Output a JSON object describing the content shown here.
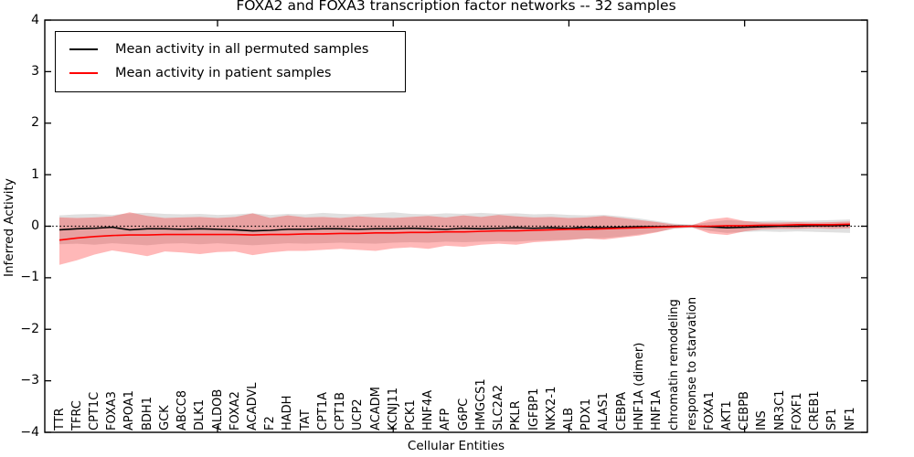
{
  "title": "FOXA2 and FOXA3 transcription factor networks -- 32 samples",
  "axes": {
    "ylabel": "Inferred Activity",
    "xlabel": "Cellular Entities",
    "y_tick_labels": [
      "4",
      "3",
      "2",
      "1",
      "0",
      "−1",
      "−2",
      "−3",
      "−4"
    ]
  },
  "legend": [
    {
      "label": "Mean activity in all permuted samples",
      "color": "#000000"
    },
    {
      "label": "Mean activity in patient samples",
      "color": "#ff0000"
    }
  ],
  "colors": {
    "permuted_line": "#000000",
    "patient_line": "#ff0000",
    "permuted_band": "rgba(0,0,0,0.12)",
    "patient_band": "rgba(255,0,0,0.28)",
    "frame": "#000000"
  },
  "chart_data": {
    "type": "line",
    "title": "FOXA2 and FOXA3 transcription factor networks -- 32 samples",
    "xlabel": "Cellular Entities",
    "ylabel": "Inferred Activity",
    "ylim": [
      -4,
      4
    ],
    "grid": false,
    "legend_position": "upper left",
    "zero_line": 0,
    "x_major_ticks": [
      10,
      20,
      30,
      40
    ],
    "categories": [
      "TTR",
      "TFRC",
      "CPT1C",
      "FOXA3",
      "APOA1",
      "BDH1",
      "GCK",
      "ABCC8",
      "DLK1",
      "ALDOB",
      "FOXA2",
      "ACADVL",
      "F2",
      "HADH",
      "TAT",
      "CPT1A",
      "CPT1B",
      "UCP2",
      "ACADM",
      "KCNJ11",
      "PCK1",
      "HNF4A",
      "AFP",
      "G6PC",
      "HMGCS1",
      "SLC2A2",
      "PKLR",
      "IGFBP1",
      "NKX2-1",
      "ALB",
      "PDX1",
      "ALAS1",
      "CEBPA",
      "HNF1A (dimer)",
      "HNF1A",
      "chromatin remodeling",
      "response to starvation",
      "FOXA1",
      "AKT1",
      "CEBPB",
      "INS",
      "NR3C1",
      "FOXF1",
      "CREB1",
      "SP1",
      "NF1"
    ],
    "series": [
      {
        "name": "Mean activity in all permuted samples",
        "color": "#000000",
        "values": [
          -0.07,
          -0.05,
          -0.04,
          -0.02,
          -0.07,
          -0.05,
          -0.05,
          -0.06,
          -0.05,
          -0.06,
          -0.07,
          -0.09,
          -0.08,
          -0.06,
          -0.06,
          -0.05,
          -0.05,
          -0.06,
          -0.05,
          -0.05,
          -0.04,
          -0.05,
          -0.06,
          -0.04,
          -0.05,
          -0.04,
          -0.03,
          -0.04,
          -0.03,
          -0.04,
          -0.02,
          -0.03,
          -0.02,
          -0.01,
          -0.01,
          0.0,
          0.0,
          -0.01,
          -0.03,
          -0.02,
          -0.01,
          0.0,
          0.0,
          0.01,
          0.01,
          0.02
        ]
      },
      {
        "name": "Mean activity in patient samples",
        "color": "#ff0000",
        "values": [
          -0.27,
          -0.23,
          -0.2,
          -0.18,
          -0.17,
          -0.17,
          -0.16,
          -0.16,
          -0.16,
          -0.16,
          -0.16,
          -0.17,
          -0.16,
          -0.16,
          -0.15,
          -0.15,
          -0.14,
          -0.14,
          -0.13,
          -0.13,
          -0.12,
          -0.12,
          -0.11,
          -0.11,
          -0.1,
          -0.09,
          -0.09,
          -0.08,
          -0.07,
          -0.06,
          -0.06,
          -0.05,
          -0.04,
          -0.03,
          -0.02,
          -0.01,
          0.0,
          0.0,
          0.01,
          0.01,
          0.02,
          0.02,
          0.03,
          0.03,
          0.03,
          0.04
        ]
      }
    ],
    "bands": [
      {
        "name": "permuted-samples-range",
        "color": "rgba(0,0,0,0.12)",
        "upper": [
          0.21,
          0.23,
          0.24,
          0.22,
          0.25,
          0.26,
          0.24,
          0.23,
          0.24,
          0.22,
          0.23,
          0.25,
          0.22,
          0.24,
          0.23,
          0.26,
          0.24,
          0.23,
          0.25,
          0.27,
          0.24,
          0.23,
          0.25,
          0.24,
          0.26,
          0.24,
          0.25,
          0.23,
          0.24,
          0.22,
          0.21,
          0.22,
          0.19,
          0.15,
          0.1,
          0.05,
          0.03,
          0.08,
          0.12,
          0.1,
          0.1,
          0.11,
          0.1,
          0.11,
          0.12,
          0.13
        ],
        "lower": [
          -0.35,
          -0.34,
          -0.36,
          -0.33,
          -0.35,
          -0.37,
          -0.34,
          -0.33,
          -0.35,
          -0.33,
          -0.35,
          -0.37,
          -0.35,
          -0.33,
          -0.34,
          -0.33,
          -0.32,
          -0.33,
          -0.34,
          -0.32,
          -0.31,
          -0.32,
          -0.3,
          -0.31,
          -0.3,
          -0.29,
          -0.3,
          -0.28,
          -0.27,
          -0.26,
          -0.24,
          -0.23,
          -0.2,
          -0.16,
          -0.11,
          -0.05,
          -0.03,
          -0.09,
          -0.13,
          -0.11,
          -0.1,
          -0.11,
          -0.1,
          -0.11,
          -0.12,
          -0.13
        ]
      },
      {
        "name": "patient-samples-range",
        "color": "rgba(255,0,0,0.28)",
        "upper": [
          0.17,
          0.16,
          0.17,
          0.19,
          0.27,
          0.2,
          0.16,
          0.17,
          0.18,
          0.16,
          0.18,
          0.25,
          0.16,
          0.21,
          0.17,
          0.18,
          0.16,
          0.19,
          0.17,
          0.16,
          0.18,
          0.2,
          0.17,
          0.21,
          0.18,
          0.22,
          0.19,
          0.17,
          0.18,
          0.16,
          0.17,
          0.2,
          0.16,
          0.12,
          0.08,
          0.03,
          0.02,
          0.13,
          0.17,
          0.1,
          0.07,
          0.07,
          0.08,
          0.07,
          0.08,
          0.09
        ],
        "lower": [
          -0.75,
          -0.66,
          -0.55,
          -0.47,
          -0.52,
          -0.58,
          -0.49,
          -0.51,
          -0.54,
          -0.5,
          -0.49,
          -0.56,
          -0.51,
          -0.48,
          -0.48,
          -0.46,
          -0.44,
          -0.46,
          -0.48,
          -0.43,
          -0.41,
          -0.44,
          -0.38,
          -0.4,
          -0.36,
          -0.34,
          -0.36,
          -0.31,
          -0.29,
          -0.27,
          -0.24,
          -0.26,
          -0.22,
          -0.18,
          -0.12,
          -0.04,
          -0.02,
          -0.14,
          -0.17,
          -0.1,
          -0.06,
          -0.05,
          -0.05,
          -0.04,
          -0.05,
          -0.04
        ]
      }
    ]
  }
}
